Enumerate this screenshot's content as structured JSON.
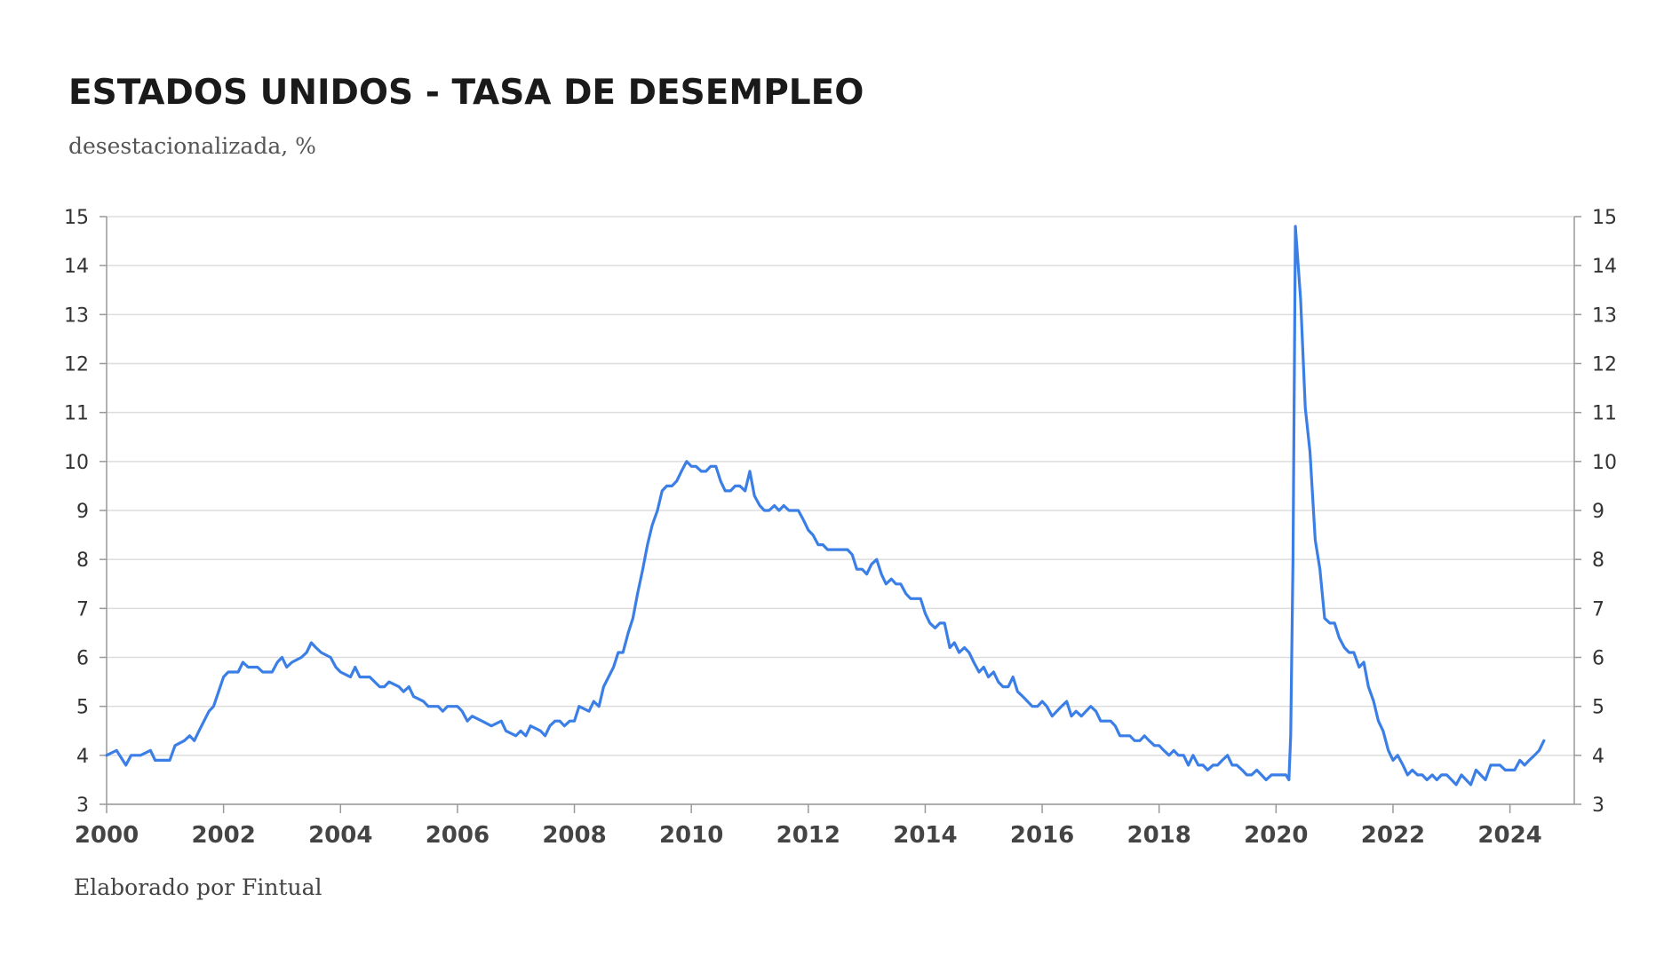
{
  "title": "ESTADOS UNIDOS - TASA DE DESEMPLEO",
  "subtitle": "desestacionalizada, %",
  "source": "Elaborado por Fintual",
  "colors": {
    "line": "#3b7fe6",
    "grid": "#dddddd",
    "axis": "#999999"
  },
  "chart_data": {
    "type": "line",
    "title": "ESTADOS UNIDOS - TASA DE DESEMPLEO",
    "subtitle": "desestacionalizada, %",
    "xlabel": "",
    "ylabel": "",
    "xlim": [
      2000,
      2025.1
    ],
    "ylim": [
      3,
      15
    ],
    "x_ticks": [
      "2000",
      "2002",
      "2004",
      "2006",
      "2008",
      "2010",
      "2012",
      "2014",
      "2016",
      "2018",
      "2020",
      "2022",
      "2024"
    ],
    "y_ticks": [
      "3",
      "4",
      "5",
      "6",
      "7",
      "8",
      "9",
      "10",
      "11",
      "12",
      "13",
      "14",
      "15"
    ],
    "y_axis_sides": [
      "left",
      "right"
    ],
    "grid": "horizontal",
    "legend": "none",
    "series": [
      {
        "points": [
          [
            2000.0,
            4.0
          ],
          [
            2000.17,
            4.1
          ],
          [
            2000.33,
            3.8
          ],
          [
            2000.42,
            4.0
          ],
          [
            2000.58,
            4.0
          ],
          [
            2000.75,
            4.1
          ],
          [
            2000.83,
            3.9
          ],
          [
            2001.0,
            3.9
          ],
          [
            2001.08,
            3.9
          ],
          [
            2001.17,
            4.2
          ],
          [
            2001.33,
            4.3
          ],
          [
            2001.42,
            4.4
          ],
          [
            2001.5,
            4.3
          ],
          [
            2001.58,
            4.5
          ],
          [
            2001.75,
            4.9
          ],
          [
            2001.83,
            5.0
          ],
          [
            2002.0,
            5.6
          ],
          [
            2002.08,
            5.7
          ],
          [
            2002.25,
            5.7
          ],
          [
            2002.33,
            5.9
          ],
          [
            2002.42,
            5.8
          ],
          [
            2002.58,
            5.8
          ],
          [
            2002.67,
            5.7
          ],
          [
            2002.83,
            5.7
          ],
          [
            2002.92,
            5.9
          ],
          [
            2003.0,
            6.0
          ],
          [
            2003.08,
            5.8
          ],
          [
            2003.17,
            5.9
          ],
          [
            2003.33,
            6.0
          ],
          [
            2003.42,
            6.1
          ],
          [
            2003.5,
            6.3
          ],
          [
            2003.58,
            6.2
          ],
          [
            2003.67,
            6.1
          ],
          [
            2003.83,
            6.0
          ],
          [
            2003.92,
            5.8
          ],
          [
            2004.0,
            5.7
          ],
          [
            2004.17,
            5.6
          ],
          [
            2004.25,
            5.8
          ],
          [
            2004.33,
            5.6
          ],
          [
            2004.5,
            5.6
          ],
          [
            2004.67,
            5.4
          ],
          [
            2004.75,
            5.4
          ],
          [
            2004.83,
            5.5
          ],
          [
            2005.0,
            5.4
          ],
          [
            2005.08,
            5.3
          ],
          [
            2005.17,
            5.4
          ],
          [
            2005.25,
            5.2
          ],
          [
            2005.42,
            5.1
          ],
          [
            2005.5,
            5.0
          ],
          [
            2005.67,
            5.0
          ],
          [
            2005.75,
            4.9
          ],
          [
            2005.83,
            5.0
          ],
          [
            2006.0,
            5.0
          ],
          [
            2006.08,
            4.9
          ],
          [
            2006.17,
            4.7
          ],
          [
            2006.25,
            4.8
          ],
          [
            2006.42,
            4.7
          ],
          [
            2006.58,
            4.6
          ],
          [
            2006.75,
            4.7
          ],
          [
            2006.83,
            4.5
          ],
          [
            2007.0,
            4.4
          ],
          [
            2007.08,
            4.5
          ],
          [
            2007.17,
            4.4
          ],
          [
            2007.25,
            4.6
          ],
          [
            2007.42,
            4.5
          ],
          [
            2007.5,
            4.4
          ],
          [
            2007.58,
            4.6
          ],
          [
            2007.67,
            4.7
          ],
          [
            2007.75,
            4.7
          ],
          [
            2007.83,
            4.6
          ],
          [
            2007.92,
            4.7
          ],
          [
            2008.0,
            4.7
          ],
          [
            2008.08,
            5.0
          ],
          [
            2008.25,
            4.9
          ],
          [
            2008.33,
            5.1
          ],
          [
            2008.42,
            5.0
          ],
          [
            2008.5,
            5.4
          ],
          [
            2008.67,
            5.8
          ],
          [
            2008.75,
            6.1
          ],
          [
            2008.83,
            6.1
          ],
          [
            2008.92,
            6.5
          ],
          [
            2009.0,
            6.8
          ],
          [
            2009.08,
            7.3
          ],
          [
            2009.17,
            7.8
          ],
          [
            2009.25,
            8.3
          ],
          [
            2009.33,
            8.7
          ],
          [
            2009.42,
            9.0
          ],
          [
            2009.5,
            9.4
          ],
          [
            2009.58,
            9.5
          ],
          [
            2009.67,
            9.5
          ],
          [
            2009.75,
            9.6
          ],
          [
            2009.83,
            9.8
          ],
          [
            2009.92,
            10.0
          ],
          [
            2010.0,
            9.9
          ],
          [
            2010.08,
            9.9
          ],
          [
            2010.17,
            9.8
          ],
          [
            2010.25,
            9.8
          ],
          [
            2010.33,
            9.9
          ],
          [
            2010.42,
            9.9
          ],
          [
            2010.5,
            9.6
          ],
          [
            2010.58,
            9.4
          ],
          [
            2010.67,
            9.4
          ],
          [
            2010.75,
            9.5
          ],
          [
            2010.83,
            9.5
          ],
          [
            2010.92,
            9.4
          ],
          [
            2011.0,
            9.8
          ],
          [
            2011.08,
            9.3
          ],
          [
            2011.17,
            9.1
          ],
          [
            2011.25,
            9.0
          ],
          [
            2011.33,
            9.0
          ],
          [
            2011.42,
            9.1
          ],
          [
            2011.5,
            9.0
          ],
          [
            2011.58,
            9.1
          ],
          [
            2011.67,
            9.0
          ],
          [
            2011.75,
            9.0
          ],
          [
            2011.83,
            9.0
          ],
          [
            2011.92,
            8.8
          ],
          [
            2012.0,
            8.6
          ],
          [
            2012.08,
            8.5
          ],
          [
            2012.17,
            8.3
          ],
          [
            2012.25,
            8.3
          ],
          [
            2012.33,
            8.2
          ],
          [
            2012.42,
            8.2
          ],
          [
            2012.5,
            8.2
          ],
          [
            2012.58,
            8.2
          ],
          [
            2012.67,
            8.2
          ],
          [
            2012.75,
            8.1
          ],
          [
            2012.83,
            7.8
          ],
          [
            2012.92,
            7.8
          ],
          [
            2013.0,
            7.7
          ],
          [
            2013.08,
            7.9
          ],
          [
            2013.17,
            8.0
          ],
          [
            2013.25,
            7.7
          ],
          [
            2013.33,
            7.5
          ],
          [
            2013.42,
            7.6
          ],
          [
            2013.5,
            7.5
          ],
          [
            2013.58,
            7.5
          ],
          [
            2013.67,
            7.3
          ],
          [
            2013.75,
            7.2
          ],
          [
            2013.83,
            7.2
          ],
          [
            2013.92,
            7.2
          ],
          [
            2014.0,
            6.9
          ],
          [
            2014.08,
            6.7
          ],
          [
            2014.17,
            6.6
          ],
          [
            2014.25,
            6.7
          ],
          [
            2014.33,
            6.7
          ],
          [
            2014.42,
            6.2
          ],
          [
            2014.5,
            6.3
          ],
          [
            2014.58,
            6.1
          ],
          [
            2014.67,
            6.2
          ],
          [
            2014.75,
            6.1
          ],
          [
            2014.83,
            5.9
          ],
          [
            2014.92,
            5.7
          ],
          [
            2015.0,
            5.8
          ],
          [
            2015.08,
            5.6
          ],
          [
            2015.17,
            5.7
          ],
          [
            2015.25,
            5.5
          ],
          [
            2015.33,
            5.4
          ],
          [
            2015.42,
            5.4
          ],
          [
            2015.5,
            5.6
          ],
          [
            2015.58,
            5.3
          ],
          [
            2015.67,
            5.2
          ],
          [
            2015.75,
            5.1
          ],
          [
            2015.83,
            5.0
          ],
          [
            2015.92,
            5.0
          ],
          [
            2016.0,
            5.1
          ],
          [
            2016.08,
            5.0
          ],
          [
            2016.17,
            4.8
          ],
          [
            2016.25,
            4.9
          ],
          [
            2016.33,
            5.0
          ],
          [
            2016.42,
            5.1
          ],
          [
            2016.5,
            4.8
          ],
          [
            2016.58,
            4.9
          ],
          [
            2016.67,
            4.8
          ],
          [
            2016.75,
            4.9
          ],
          [
            2016.83,
            5.0
          ],
          [
            2016.92,
            4.9
          ],
          [
            2017.0,
            4.7
          ],
          [
            2017.08,
            4.7
          ],
          [
            2017.17,
            4.7
          ],
          [
            2017.25,
            4.6
          ],
          [
            2017.33,
            4.4
          ],
          [
            2017.42,
            4.4
          ],
          [
            2017.5,
            4.4
          ],
          [
            2017.58,
            4.3
          ],
          [
            2017.67,
            4.3
          ],
          [
            2017.75,
            4.4
          ],
          [
            2017.83,
            4.3
          ],
          [
            2017.92,
            4.2
          ],
          [
            2018.0,
            4.2
          ],
          [
            2018.08,
            4.1
          ],
          [
            2018.17,
            4.0
          ],
          [
            2018.25,
            4.1
          ],
          [
            2018.33,
            4.0
          ],
          [
            2018.42,
            4.0
          ],
          [
            2018.5,
            3.8
          ],
          [
            2018.58,
            4.0
          ],
          [
            2018.67,
            3.8
          ],
          [
            2018.75,
            3.8
          ],
          [
            2018.83,
            3.7
          ],
          [
            2018.92,
            3.8
          ],
          [
            2019.0,
            3.8
          ],
          [
            2019.08,
            3.9
          ],
          [
            2019.17,
            4.0
          ],
          [
            2019.25,
            3.8
          ],
          [
            2019.33,
            3.8
          ],
          [
            2019.42,
            3.7
          ],
          [
            2019.5,
            3.6
          ],
          [
            2019.58,
            3.6
          ],
          [
            2019.67,
            3.7
          ],
          [
            2019.75,
            3.6
          ],
          [
            2019.83,
            3.5
          ],
          [
            2019.92,
            3.6
          ],
          [
            2020.0,
            3.6
          ],
          [
            2020.08,
            3.6
          ],
          [
            2020.17,
            3.6
          ],
          [
            2020.22,
            3.5
          ],
          [
            2020.25,
            4.4
          ],
          [
            2020.29,
            8.0
          ],
          [
            2020.33,
            14.8
          ],
          [
            2020.42,
            13.3
          ],
          [
            2020.5,
            11.1
          ],
          [
            2020.58,
            10.2
          ],
          [
            2020.67,
            8.4
          ],
          [
            2020.75,
            7.8
          ],
          [
            2020.83,
            6.8
          ],
          [
            2020.92,
            6.7
          ],
          [
            2021.0,
            6.7
          ],
          [
            2021.08,
            6.4
          ],
          [
            2021.17,
            6.2
          ],
          [
            2021.25,
            6.1
          ],
          [
            2021.33,
            6.1
          ],
          [
            2021.42,
            5.8
          ],
          [
            2021.5,
            5.9
          ],
          [
            2021.58,
            5.4
          ],
          [
            2021.67,
            5.1
          ],
          [
            2021.75,
            4.7
          ],
          [
            2021.83,
            4.5
          ],
          [
            2021.92,
            4.1
          ],
          [
            2022.0,
            3.9
          ],
          [
            2022.08,
            4.0
          ],
          [
            2022.17,
            3.8
          ],
          [
            2022.25,
            3.6
          ],
          [
            2022.33,
            3.7
          ],
          [
            2022.42,
            3.6
          ],
          [
            2022.5,
            3.6
          ],
          [
            2022.58,
            3.5
          ],
          [
            2022.67,
            3.6
          ],
          [
            2022.75,
            3.5
          ],
          [
            2022.83,
            3.6
          ],
          [
            2022.92,
            3.6
          ],
          [
            2023.0,
            3.5
          ],
          [
            2023.08,
            3.4
          ],
          [
            2023.17,
            3.6
          ],
          [
            2023.25,
            3.5
          ],
          [
            2023.33,
            3.4
          ],
          [
            2023.42,
            3.7
          ],
          [
            2023.5,
            3.6
          ],
          [
            2023.58,
            3.5
          ],
          [
            2023.67,
            3.8
          ],
          [
            2023.75,
            3.8
          ],
          [
            2023.83,
            3.8
          ],
          [
            2023.92,
            3.7
          ],
          [
            2024.0,
            3.7
          ],
          [
            2024.08,
            3.7
          ],
          [
            2024.17,
            3.9
          ],
          [
            2024.25,
            3.8
          ],
          [
            2024.33,
            3.9
          ],
          [
            2024.42,
            4.0
          ],
          [
            2024.5,
            4.1
          ],
          [
            2024.58,
            4.3
          ]
        ]
      }
    ]
  }
}
